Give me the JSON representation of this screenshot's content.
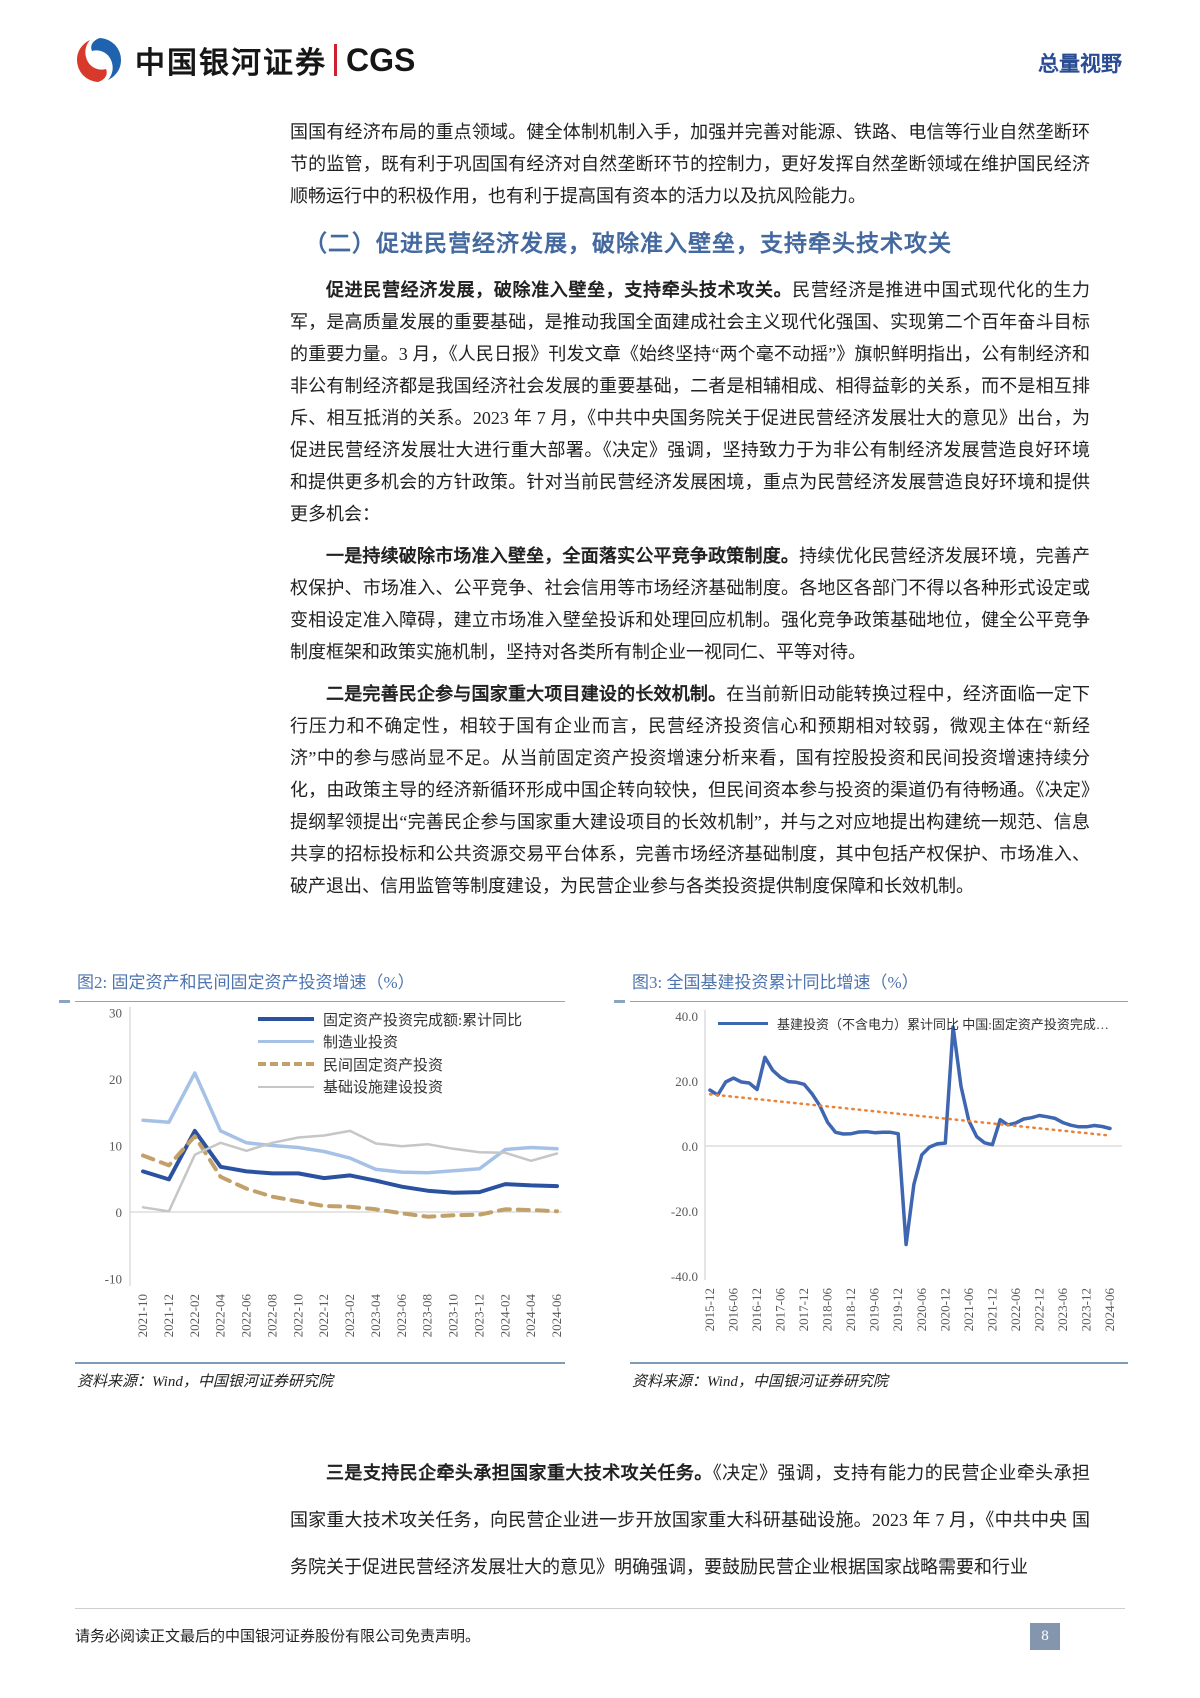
{
  "header": {
    "brand_cn": "中国银河证券",
    "brand_en": "CGS",
    "topic_label": "总量视野"
  },
  "body": {
    "para_continued": "国国有经济布局的重点领域。健全体制机制入手，加强并完善对能源、铁路、电信等行业自然垄断环节的监管，既有利于巩固国有经济对自然垄断环节的控制力，更好发挥自然垄断领域在维护国民经济顺畅运行中的积极作用，也有利于提高国有资本的活力以及抗风险能力。",
    "section_heading": "（二）促进民营经济发展，破除准入壁垒，支持牵头技术攻关",
    "paragraphs": [
      {
        "lead": "促进民营经济发展，破除准入壁垒，支持牵头技术攻关。",
        "text": "民营经济是推进中国式现代化的生力军，是高质量发展的重要基础，是推动我国全面建成社会主义现代化强国、实现第二个百年奋斗目标的重要力量。3 月，《人民日报》刊发文章《始终坚持“两个毫不动摇”》旗帜鲜明指出，公有制经济和非公有制经济都是我国经济社会发展的重要基础，二者是相辅相成、相得益彰的关系，而不是相互排斥、相互抵消的关系。2023 年 7 月，《中共中央国务院关于促进民营经济发展壮大的意见》出台，为促进民营经济发展壮大进行重大部署。《决定》强调，坚持致力于为非公有制经济发展营造良好环境和提供更多机会的方针政策。针对当前民营经济发展困境，重点为民营经济发展营造良好环境和提供更多机会："
      },
      {
        "lead": "一是持续破除市场准入壁垒，全面落实公平竞争政策制度。",
        "text": "持续优化民营经济发展环境，完善产权保护、市场准入、公平竞争、社会信用等市场经济基础制度。各地区各部门不得以各种形式设定或变相设定准入障碍，建立市场准入壁垒投诉和处理回应机制。强化竞争政策基础地位，健全公平竞争制度框架和政策实施机制，坚持对各类所有制企业一视同仁、平等对待。"
      },
      {
        "lead": "二是完善民企参与国家重大项目建设的长效机制。",
        "text": "在当前新旧动能转换过程中，经济面临一定下行压力和不确定性，相较于国有企业而言，民营经济投资信心和预期相对较弱，微观主体在“新经济”中的参与感尚显不足。从当前固定资产投资增速分析来看，国有控股投资和民间投资增速持续分化，由政策主导的经济新循环形成中国企转向较快，但民间资本参与投资的渠道仍有待畅通。《决定》提纲挈领提出“完善民企参与国家重大建设项目的长效机制”，并与之对应地提出构建统一规范、信息共享的招标投标和公共资源交易平台体系，完善市场经济基础制度，其中包括产权保护、市场准入、破产退出、信用监管等制度建设，为民营企业参与各类投资提供制度保障和长效机制。"
      }
    ],
    "closing_para": {
      "lead": "三是支持民企牵头承担国家重大技术攻关任务。",
      "text": "《决定》强调，支持有能力的民营企业牵头承担国家重大技术攻关任务，向民营企业进一步开放国家重大科研基础设施。2023 年 7 月，《中共中央 国务院关于促进民营经济发展壮大的意见》明确强调，要鼓励民营企业根据国家战略需要和行业"
    }
  },
  "chart_data": [
    {
      "type": "line",
      "title": "图2: 固定资产和民间固定资产投资增速（%）",
      "source": "资料来源：Wind，中国银河证券研究院",
      "ylim": [
        -10,
        30
      ],
      "yticks": [
        "30",
        "20",
        "10",
        "0",
        "-10"
      ],
      "grid": false,
      "legend_position": "top-right",
      "x_tick_labels": [
        "2021-10",
        "2021-12",
        "2022-02",
        "2022-04",
        "2022-06",
        "2022-08",
        "2022-10",
        "2022-12",
        "2023-02",
        "2023-04",
        "2023-06",
        "2023-08",
        "2023-10",
        "2023-12",
        "2024-02",
        "2024-04",
        "2024-06"
      ],
      "series": [
        {
          "name": "固定资产投资完成额:累计同比",
          "color": "#2a52a0",
          "width": 4,
          "dash": null,
          "values": [
            6.1,
            4.9,
            12.2,
            6.8,
            6.1,
            5.8,
            5.8,
            5.1,
            5.5,
            4.7,
            3.8,
            3.2,
            2.9,
            3.0,
            4.2,
            4.0,
            3.9
          ]
        },
        {
          "name": "制造业投资",
          "color": "#a6c1e6",
          "width": 3.5,
          "dash": null,
          "values": [
            13.8,
            13.5,
            20.9,
            12.2,
            10.4,
            10.0,
            9.7,
            9.1,
            8.1,
            6.4,
            6.0,
            5.9,
            6.2,
            6.5,
            9.4,
            9.7,
            9.5
          ]
        },
        {
          "name": "民间固定资产投资",
          "color": "#c2a06a",
          "width": 4,
          "dash": "11 8",
          "values": [
            8.5,
            7.0,
            11.4,
            5.3,
            3.5,
            2.3,
            1.6,
            0.9,
            0.8,
            0.4,
            -0.2,
            -0.7,
            -0.5,
            -0.4,
            0.4,
            0.3,
            0.1
          ]
        },
        {
          "name": "基础设施建设投资",
          "color": "#c6c6c6",
          "width": 2.5,
          "dash": null,
          "values": [
            0.7,
            0.1,
            8.6,
            10.4,
            9.2,
            10.4,
            11.2,
            11.5,
            12.2,
            10.3,
            9.9,
            10.2,
            9.5,
            9.0,
            8.9,
            7.7,
            8.8
          ]
        }
      ]
    },
    {
      "type": "line",
      "title": "图3: 全国基建投资累计同比增速（%）",
      "source": "资料来源：Wind，中国银河证券研究院",
      "ylim": [
        -40,
        40
      ],
      "yticks": [
        "40.0",
        "20.0",
        "0.0",
        "-20.0",
        "-40.0"
      ],
      "grid": false,
      "legend_position": "top",
      "x_months_step": 2,
      "x_months_span": 102,
      "x_tick_labels": [
        "2015-12",
        "2016-06",
        "2016-12",
        "2017-06",
        "2017-12",
        "2018-06",
        "2018-12",
        "2019-06",
        "2019-12",
        "2020-06",
        "2020-12",
        "2021-06",
        "2021-12",
        "2022-06",
        "2022-12",
        "2023-06",
        "2023-12",
        "2024-06"
      ],
      "series": [
        {
          "name": "基建投资（不含电力）累计同比",
          "color": "#3f66b0",
          "width": 3.5,
          "dash": null,
          "values": [
            17.2,
            15.7,
            19.7,
            20.9,
            19.7,
            19.4,
            17.4,
            27.3,
            23.3,
            21.1,
            19.8,
            19.6,
            19.0,
            16.1,
            12.4,
            7.3,
            4.2,
            3.7,
            3.8,
            4.3,
            4.4,
            4.1,
            4.2,
            4.2,
            3.8,
            -30.3,
            -11.8,
            -2.7,
            -0.3,
            0.7,
            0.9,
            36.6,
            18.4,
            7.8,
            2.9,
            1.0,
            0.4,
            8.1,
            6.5,
            7.1,
            8.3,
            8.7,
            9.4,
            9.0,
            8.5,
            7.2,
            6.4,
            5.9,
            5.9,
            6.3,
            6.0,
            5.4
          ]
        },
        {
          "name": "中国:固定资产投资完成…",
          "color": "#e8833a",
          "width": 2.5,
          "dash": "1.5 5",
          "x_months": [
            0,
            102
          ],
          "values": [
            15.9,
            3.2
          ]
        }
      ]
    }
  ],
  "footer": {
    "disclaimer": "请务必阅读正文最后的中国银河证券股份有限公司免责声明。",
    "page_number": "8"
  }
}
